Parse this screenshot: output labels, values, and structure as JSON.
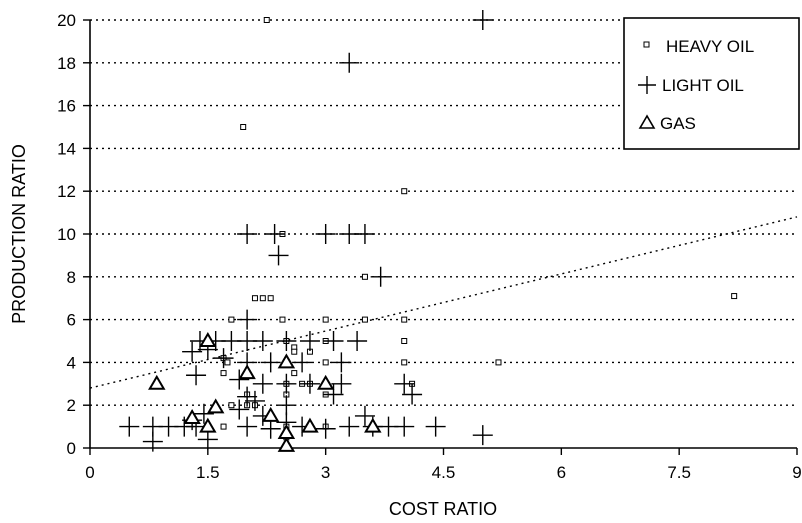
{
  "chart_data": {
    "type": "scatter",
    "xlabel": "COST RATIO",
    "ylabel": "PRODUCTION RATIO",
    "xlim": [
      0,
      9
    ],
    "ylim": [
      0,
      20
    ],
    "x_ticks": [
      "0",
      "1.5",
      "3",
      "4.5",
      "6",
      "7.5",
      "9"
    ],
    "x_tick_values": [
      0,
      1.5,
      3,
      4.5,
      6,
      7.5,
      9
    ],
    "y_ticks": [
      "0",
      "2",
      "4",
      "6",
      "8",
      "10",
      "12",
      "14",
      "16",
      "18",
      "20"
    ],
    "y_tick_values": [
      0,
      2,
      4,
      6,
      8,
      10,
      12,
      14,
      16,
      18,
      20
    ],
    "grid": "horizontal dotted",
    "legend_position": "top-right",
    "series": [
      {
        "name": "HEAVY OIL",
        "marker": "small-square",
        "points": [
          [
            2.25,
            20
          ],
          [
            1.95,
            15
          ],
          [
            4.0,
            12
          ],
          [
            2.1,
            7
          ],
          [
            2.2,
            7
          ],
          [
            2.3,
            7
          ],
          [
            3.5,
            8
          ],
          [
            2.45,
            10
          ],
          [
            2.45,
            6
          ],
          [
            1.8,
            6
          ],
          [
            3.0,
            6
          ],
          [
            3.5,
            6
          ],
          [
            4.0,
            6
          ],
          [
            4.0,
            5
          ],
          [
            4.0,
            4
          ],
          [
            4.1,
            3
          ],
          [
            5.2,
            4
          ],
          [
            8.2,
            7.1
          ],
          [
            1.7,
            4.2
          ],
          [
            1.75,
            4.0
          ],
          [
            1.7,
            3.5
          ],
          [
            2.5,
            5
          ],
          [
            2.6,
            4.7
          ],
          [
            2.6,
            4.5
          ],
          [
            2.8,
            4.5
          ],
          [
            2.5,
            4
          ],
          [
            2.6,
            3.5
          ],
          [
            2.5,
            3
          ],
          [
            2.7,
            3
          ],
          [
            2.8,
            3
          ],
          [
            3.0,
            4
          ],
          [
            3.0,
            5
          ],
          [
            3.0,
            2.5
          ],
          [
            2.5,
            2.5
          ],
          [
            2.0,
            2.5
          ],
          [
            2.0,
            2.0
          ],
          [
            2.1,
            2.0
          ],
          [
            1.8,
            2.0
          ],
          [
            2.5,
            1.0
          ],
          [
            2.5,
            0.5
          ],
          [
            1.7,
            1.0
          ],
          [
            3.0,
            1.0
          ]
        ]
      },
      {
        "name": "LIGHT OIL",
        "marker": "plus",
        "points": [
          [
            5.0,
            20
          ],
          [
            3.3,
            18
          ],
          [
            2.0,
            10
          ],
          [
            2.35,
            10
          ],
          [
            3.0,
            10
          ],
          [
            3.3,
            10
          ],
          [
            3.5,
            10
          ],
          [
            2.4,
            9
          ],
          [
            3.7,
            8
          ],
          [
            2.0,
            6
          ],
          [
            1.4,
            5
          ],
          [
            1.6,
            5
          ],
          [
            1.8,
            5
          ],
          [
            2.0,
            5
          ],
          [
            2.2,
            5
          ],
          [
            2.5,
            5
          ],
          [
            2.8,
            5
          ],
          [
            3.1,
            5
          ],
          [
            3.4,
            5
          ],
          [
            1.3,
            4.5
          ],
          [
            1.5,
            4.6
          ],
          [
            1.7,
            4.2
          ],
          [
            2.0,
            4
          ],
          [
            2.3,
            4
          ],
          [
            2.7,
            4
          ],
          [
            3.2,
            4
          ],
          [
            1.35,
            3.4
          ],
          [
            1.9,
            3.2
          ],
          [
            2.2,
            3
          ],
          [
            2.5,
            3
          ],
          [
            2.8,
            3
          ],
          [
            3.2,
            3
          ],
          [
            4.0,
            3
          ],
          [
            4.1,
            2.5
          ],
          [
            2.0,
            2.4
          ],
          [
            2.1,
            2.2
          ],
          [
            1.9,
            1.8
          ],
          [
            2.2,
            1.5
          ],
          [
            2.5,
            2
          ],
          [
            3.1,
            2.5
          ],
          [
            3.5,
            1.5
          ],
          [
            1.45,
            1.6
          ],
          [
            1.3,
            1.3
          ],
          [
            1.2,
            1.0
          ],
          [
            0.5,
            1.0
          ],
          [
            0.8,
            1.0
          ],
          [
            1.0,
            1.0
          ],
          [
            1.35,
            1.0
          ],
          [
            1.5,
            0.4
          ],
          [
            2.0,
            1.0
          ],
          [
            2.3,
            0.9
          ],
          [
            2.5,
            1.2
          ],
          [
            2.7,
            1.0
          ],
          [
            3.0,
            0.9
          ],
          [
            3.3,
            1.0
          ],
          [
            3.6,
            1.0
          ],
          [
            3.8,
            1.0
          ],
          [
            4.0,
            1.0
          ],
          [
            4.4,
            1.0
          ],
          [
            5.0,
            0.6
          ],
          [
            0.8,
            0.3
          ]
        ]
      },
      {
        "name": "GAS",
        "marker": "triangle",
        "points": [
          [
            0.85,
            3.0
          ],
          [
            1.5,
            5.0
          ],
          [
            2.0,
            3.5
          ],
          [
            2.5,
            4.0
          ],
          [
            3.0,
            3.0
          ],
          [
            1.3,
            1.4
          ],
          [
            1.6,
            1.9
          ],
          [
            1.5,
            1.0
          ],
          [
            2.3,
            1.5
          ],
          [
            2.8,
            1.0
          ],
          [
            2.5,
            0.7
          ],
          [
            3.6,
            1.0
          ],
          [
            2.5,
            0.1
          ]
        ]
      }
    ],
    "trendline": {
      "style": "dotted",
      "from": [
        0,
        2.8
      ],
      "to": [
        9,
        10.8
      ]
    }
  }
}
